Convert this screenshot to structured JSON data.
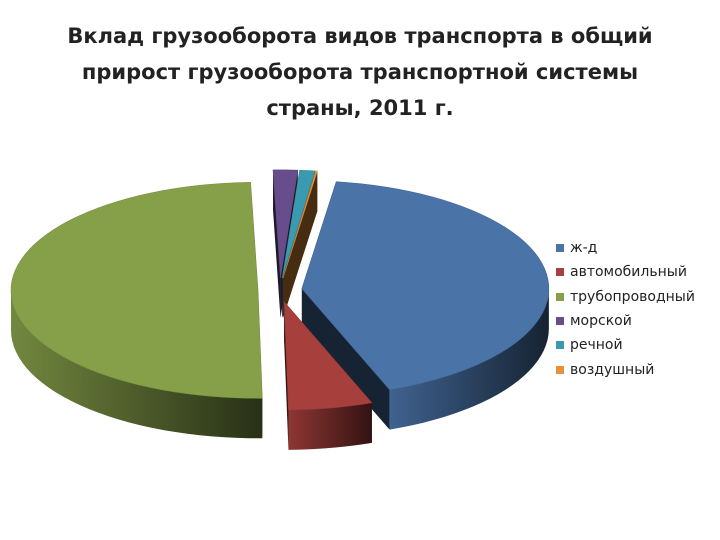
{
  "title_lines": [
    "Вклад грузооборота видов транспорта в общий",
    "прирост грузооборота транспортной системы",
    "страны, 2011 г."
  ],
  "chart_data": {
    "type": "pie",
    "style": "3d-exploded",
    "title": "Вклад грузооборота видов транспорта в общий прирост грузооборота транспортной системы страны, 2011 г.",
    "legend_position": "right",
    "series": [
      {
        "name": "ж-д",
        "value": 42.0,
        "color": "#4a73a8"
      },
      {
        "name": "автомобильный",
        "value": 5.5,
        "color": "#a7403c"
      },
      {
        "name": "трубопроводный",
        "value": 49.8,
        "color": "#86a04a"
      },
      {
        "name": "морской",
        "value": 1.6,
        "color": "#674d8c"
      },
      {
        "name": "речной",
        "value": 1.0,
        "color": "#3a9ab0"
      },
      {
        "name": "воздушный",
        "value": 0.1,
        "color": "#e8913a"
      }
    ]
  }
}
